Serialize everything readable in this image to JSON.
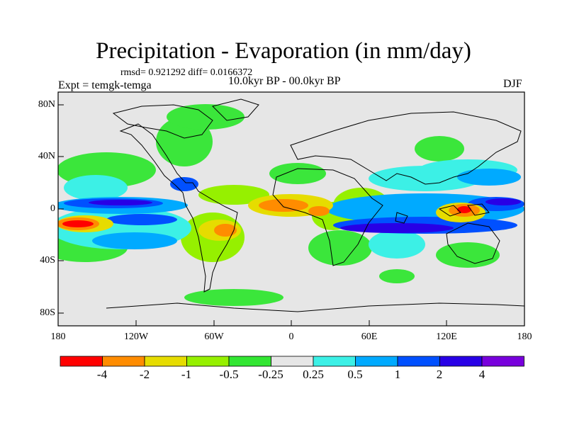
{
  "title": "Precipitation - Evaporation (in mm/day)",
  "stats": "rmsd= 0.921292 diff= 0.0166372",
  "experiment": "Expt = temgk-temga",
  "period": "10.0kyr BP - 00.0kyr BP",
  "season": "DJF",
  "lat_ticks": [
    "80N",
    "40N",
    "0",
    "40S",
    "80S"
  ],
  "lon_ticks": [
    "180",
    "120W",
    "60W",
    "0",
    "60E",
    "120E",
    "180"
  ],
  "colorbar": {
    "colors": [
      "#ff0000",
      "#ff8c00",
      "#e6dc00",
      "#96f000",
      "#32e632",
      "#e6e6e6",
      "#3cf0e6",
      "#00aaff",
      "#0050ff",
      "#2800e6",
      "#7800dc"
    ],
    "labels": [
      "-4",
      "-2",
      "-1",
      "-0.5",
      "-0.25",
      "0.25",
      "0.5",
      "1",
      "2",
      "4"
    ]
  }
}
